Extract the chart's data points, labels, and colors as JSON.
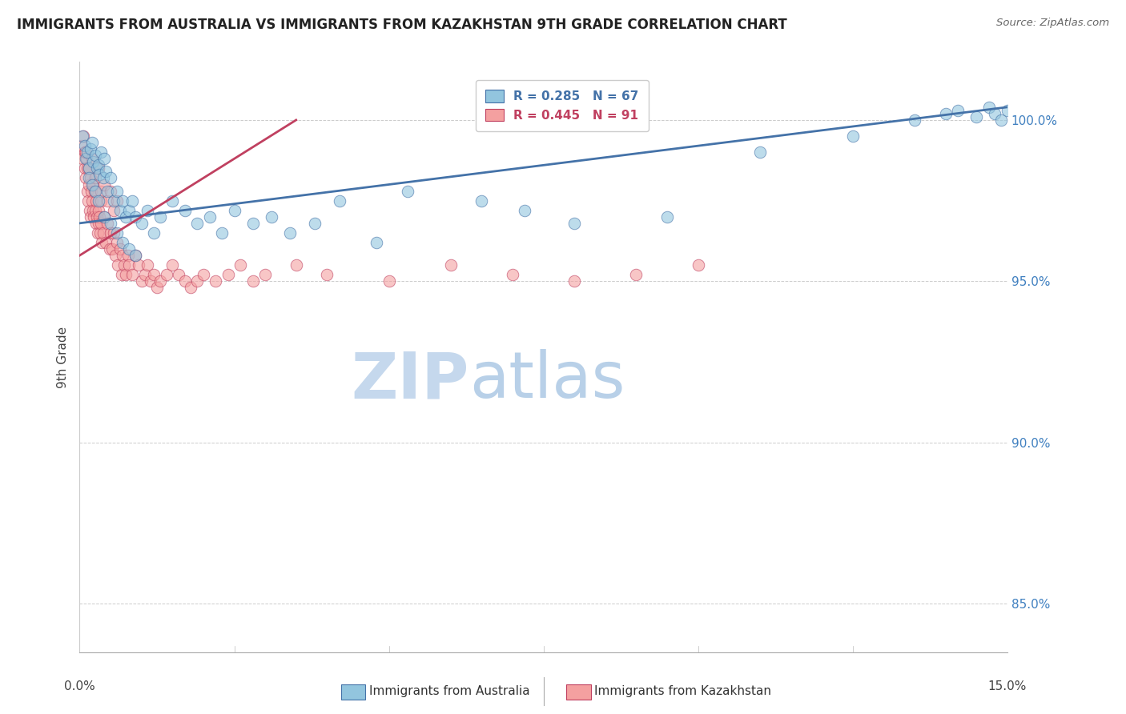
{
  "title": "IMMIGRANTS FROM AUSTRALIA VS IMMIGRANTS FROM KAZAKHSTAN 9TH GRADE CORRELATION CHART",
  "source": "Source: ZipAtlas.com",
  "ylabel": "9th Grade",
  "y_ticks": [
    85.0,
    90.0,
    95.0,
    100.0
  ],
  "y_tick_labels": [
    "85.0%",
    "90.0%",
    "95.0%",
    "100.0%"
  ],
  "x_range": [
    0.0,
    15.0
  ],
  "y_range": [
    83.5,
    101.8
  ],
  "legend_blue_r": "R = 0.285",
  "legend_blue_n": "N = 67",
  "legend_pink_r": "R = 0.445",
  "legend_pink_n": "N = 91",
  "legend_label_blue": "Immigrants from Australia",
  "legend_label_pink": "Immigrants from Kazakhstan",
  "blue_color": "#92c5de",
  "pink_color": "#f4a0a0",
  "trendline_blue_color": "#4472a8",
  "trendline_pink_color": "#c04060",
  "watermark_zip_color": "#c8dff0",
  "watermark_atlas_color": "#b0c8e8",
  "blue_scatter_x": [
    0.05,
    0.08,
    0.1,
    0.12,
    0.15,
    0.18,
    0.2,
    0.22,
    0.25,
    0.28,
    0.3,
    0.32,
    0.35,
    0.38,
    0.4,
    0.42,
    0.45,
    0.5,
    0.55,
    0.6,
    0.65,
    0.7,
    0.75,
    0.8,
    0.85,
    0.9,
    1.0,
    1.1,
    1.2,
    1.3,
    1.5,
    1.7,
    1.9,
    2.1,
    2.3,
    2.5,
    2.8,
    3.1,
    3.4,
    3.8,
    4.2,
    4.8,
    5.3,
    6.5,
    7.2,
    8.0,
    9.5,
    11.0,
    12.5,
    13.5,
    14.0,
    14.2,
    14.5,
    14.7,
    14.8,
    14.9,
    15.0,
    0.15,
    0.2,
    0.25,
    0.3,
    0.4,
    0.5,
    0.6,
    0.7,
    0.8,
    0.9
  ],
  "blue_scatter_y": [
    99.5,
    99.2,
    98.8,
    99.0,
    98.5,
    99.1,
    99.3,
    98.7,
    98.9,
    98.5,
    98.6,
    98.3,
    99.0,
    98.2,
    98.8,
    98.4,
    97.8,
    98.2,
    97.5,
    97.8,
    97.2,
    97.5,
    97.0,
    97.2,
    97.5,
    97.0,
    96.8,
    97.2,
    96.5,
    97.0,
    97.5,
    97.2,
    96.8,
    97.0,
    96.5,
    97.2,
    96.8,
    97.0,
    96.5,
    96.8,
    97.5,
    96.2,
    97.8,
    97.5,
    97.2,
    96.8,
    97.0,
    99.0,
    99.5,
    100.0,
    100.2,
    100.3,
    100.1,
    100.4,
    100.2,
    100.0,
    100.3,
    98.2,
    98.0,
    97.8,
    97.5,
    97.0,
    96.8,
    96.5,
    96.2,
    96.0,
    95.8
  ],
  "pink_scatter_x": [
    0.03,
    0.05,
    0.06,
    0.08,
    0.09,
    0.1,
    0.11,
    0.12,
    0.13,
    0.14,
    0.15,
    0.16,
    0.17,
    0.18,
    0.19,
    0.2,
    0.21,
    0.22,
    0.23,
    0.24,
    0.25,
    0.26,
    0.27,
    0.28,
    0.29,
    0.3,
    0.31,
    0.32,
    0.33,
    0.34,
    0.35,
    0.36,
    0.38,
    0.4,
    0.42,
    0.45,
    0.48,
    0.5,
    0.52,
    0.55,
    0.58,
    0.6,
    0.62,
    0.65,
    0.68,
    0.7,
    0.72,
    0.75,
    0.78,
    0.8,
    0.85,
    0.9,
    0.95,
    1.0,
    1.05,
    1.1,
    1.15,
    1.2,
    1.25,
    1.3,
    1.4,
    1.5,
    1.6,
    1.7,
    1.8,
    1.9,
    2.0,
    2.2,
    2.4,
    2.6,
    2.8,
    3.0,
    3.5,
    4.0,
    5.0,
    6.0,
    7.0,
    8.0,
    9.0,
    10.0,
    0.1,
    0.15,
    0.2,
    0.25,
    0.3,
    0.35,
    0.4,
    0.45,
    0.5,
    0.55,
    0.6
  ],
  "pink_scatter_y": [
    99.2,
    98.8,
    99.5,
    99.0,
    98.5,
    98.2,
    98.8,
    97.8,
    98.5,
    97.5,
    98.0,
    97.2,
    98.2,
    97.0,
    97.8,
    97.5,
    97.2,
    98.0,
    97.0,
    97.8,
    97.2,
    97.5,
    96.8,
    97.0,
    96.5,
    97.2,
    96.8,
    97.0,
    96.5,
    96.8,
    97.5,
    96.2,
    96.5,
    97.0,
    96.2,
    96.8,
    96.0,
    96.5,
    96.0,
    96.5,
    95.8,
    96.2,
    95.5,
    96.0,
    95.2,
    95.8,
    95.5,
    95.2,
    95.8,
    95.5,
    95.2,
    95.8,
    95.5,
    95.0,
    95.2,
    95.5,
    95.0,
    95.2,
    94.8,
    95.0,
    95.2,
    95.5,
    95.2,
    95.0,
    94.8,
    95.0,
    95.2,
    95.0,
    95.2,
    95.5,
    95.0,
    95.2,
    95.5,
    95.2,
    95.0,
    95.5,
    95.2,
    95.0,
    95.2,
    95.5,
    99.0,
    98.5,
    98.8,
    98.2,
    98.5,
    97.8,
    98.0,
    97.5,
    97.8,
    97.2,
    97.5
  ],
  "blue_trend_x": [
    0.0,
    15.0
  ],
  "blue_trend_y": [
    96.8,
    100.4
  ],
  "pink_trend_x": [
    0.0,
    3.5
  ],
  "pink_trend_y": [
    95.8,
    100.0
  ]
}
